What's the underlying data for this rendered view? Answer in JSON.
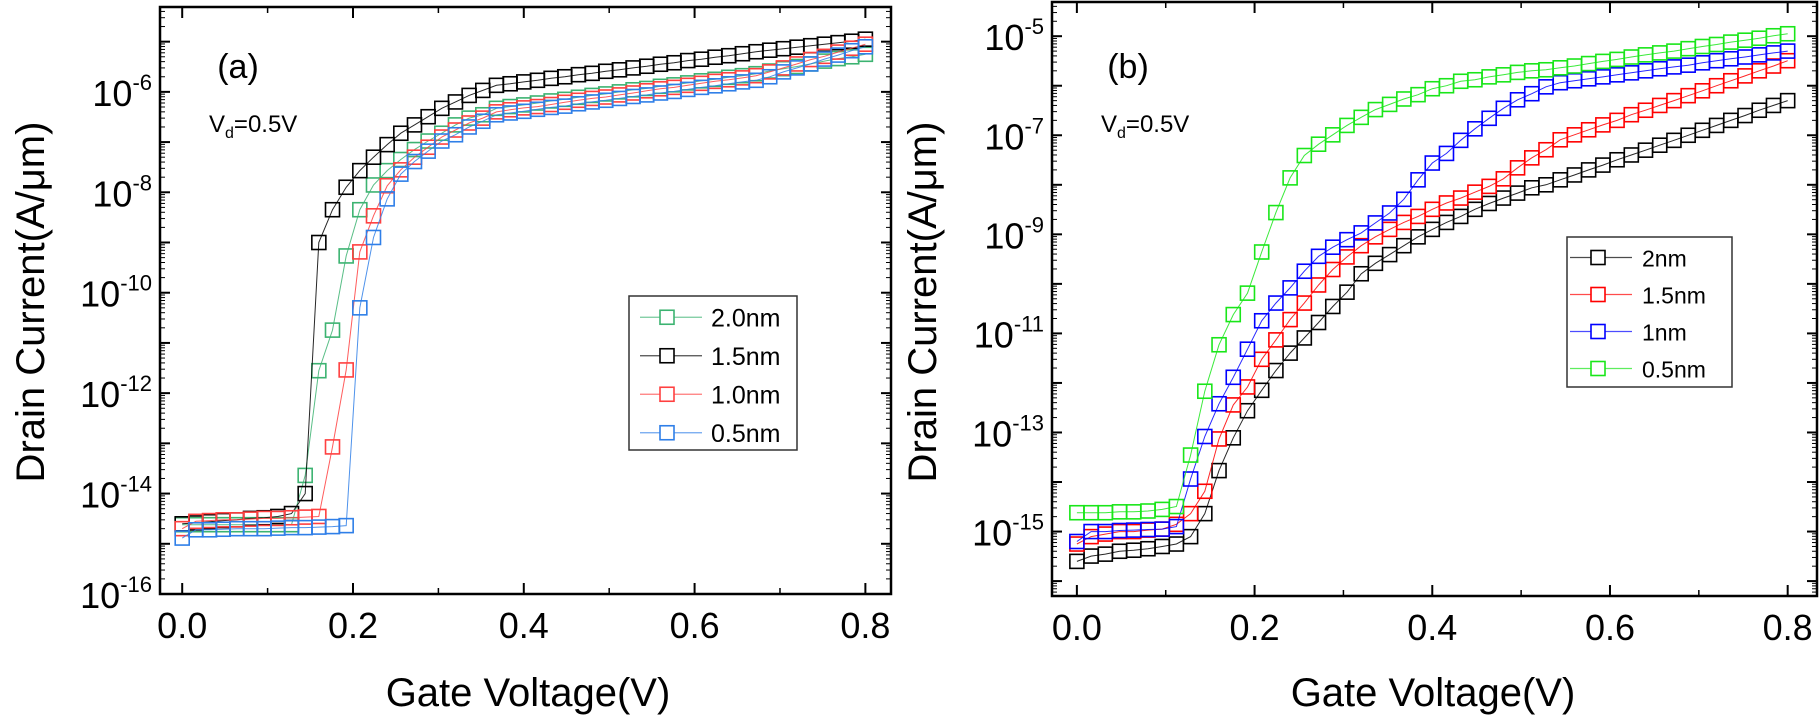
{
  "chart_data": [
    {
      "type": "scatter",
      "panel_label": "(a)",
      "annotation": {
        "main": "V",
        "sub": "d",
        "rest": "=0.5V"
      },
      "xlabel": "Gate Voltage(V)",
      "ylabel": "Drain Current(A/μm)",
      "xlim": [
        -0.026,
        0.83
      ],
      "ylim": [
        1e-16,
        4.9e-05
      ],
      "yscale": "log",
      "xticks": [
        "0.0",
        "0.2",
        "0.4",
        "0.6",
        "0.8"
      ],
      "yticks": [
        {
          "base": "10",
          "exp": "-16"
        },
        {
          "base": "10",
          "exp": "-14"
        },
        {
          "base": "10",
          "exp": "-12"
        },
        {
          "base": "10",
          "exp": "-10"
        },
        {
          "base": "10",
          "exp": "-8"
        },
        {
          "base": "10",
          "exp": "-6"
        }
      ],
      "grid": false,
      "legend_position": "center-right",
      "marker": "open-square",
      "x": [
        0,
        0.016,
        0.032,
        0.048,
        0.064,
        0.08,
        0.096,
        0.112,
        0.128,
        0.144,
        0.16,
        0.176,
        0.192,
        0.208,
        0.224,
        0.24,
        0.256,
        0.272,
        0.288,
        0.304,
        0.32,
        0.336,
        0.352,
        0.368,
        0.384,
        0.4,
        0.416,
        0.432,
        0.448,
        0.464,
        0.48,
        0.496,
        0.512,
        0.528,
        0.544,
        0.56,
        0.576,
        0.592,
        0.608,
        0.624,
        0.64,
        0.656,
        0.672,
        0.688,
        0.704,
        0.72,
        0.736,
        0.752,
        0.768,
        0.784,
        0.8
      ],
      "series": [
        {
          "name": "2.0nm",
          "color": "#3cb371",
          "values": [
            2.4e-15,
            2.4e-15,
            2.4e-15,
            2.4e-15,
            2.4e-15,
            2.4e-15,
            2.4e-15,
            2.4e-15,
            2.4e-15,
            2.3e-14,
            2.8e-12,
            1.8e-11,
            5.4e-10,
            4.5e-09,
            1.4e-08,
            2.7e-08,
            4.5e-08,
            7.1e-08,
            1.05e-07,
            1.5e-07,
            2.2e-07,
            3e-07,
            3.5e-07,
            4.7e-07,
            5.1e-07,
            5.5e-07,
            6e-07,
            6.6e-07,
            7.1e-07,
            7.8e-07,
            8.5e-07,
            9.1e-07,
            1e-06,
            1.1e-06,
            1.17e-06,
            1.29e-06,
            1.38e-06,
            1.51e-06,
            1.66e-06,
            1.78e-06,
            1.95e-06,
            2.1e-06,
            2.3e-06,
            2.6e-06,
            2.9e-06,
            3.2e-06,
            3.6e-06,
            4.1e-06,
            4.6e-06,
            5e-06,
            5.6e-06
          ]
        },
        {
          "name": "1.5nm",
          "color": "#000000",
          "values": [
            2.5e-15,
            2.6e-15,
            2.75e-15,
            2.9e-15,
            3e-15,
            3.2e-15,
            3.3e-15,
            3.5e-15,
            4e-15,
            1e-14,
            1e-09,
            4.5e-09,
            1.26e-08,
            2.7e-08,
            5e-08,
            8.9e-08,
            1.5e-07,
            2.2e-07,
            3.2e-07,
            4.7e-07,
            6.3e-07,
            8.5e-07,
            1.07e-06,
            1.35e-06,
            1.45e-06,
            1.58e-06,
            1.7e-06,
            1.86e-06,
            2e-06,
            2.2e-06,
            2.34e-06,
            2.57e-06,
            2.75e-06,
            3e-06,
            3.24e-06,
            3.55e-06,
            3.8e-06,
            4.2e-06,
            4.47e-06,
            4.9e-06,
            5.25e-06,
            5.75e-06,
            6.3e-06,
            6.76e-06,
            7.24e-06,
            7.76e-06,
            8.3e-06,
            8.9e-06,
            9.55e-06,
            1.02e-05,
            1.12e-05
          ]
        },
        {
          "name": "1.0nm",
          "color": "#ff4040",
          "values": [
            2e-15,
            2.8e-15,
            2.9e-15,
            3e-15,
            3e-15,
            3.1e-15,
            3.2e-15,
            3.2e-15,
            3.3e-15,
            3.4e-15,
            3.5e-15,
            8.5e-14,
            2.9e-12,
            6.5e-10,
            3.4e-09,
            1.35e-08,
            2.8e-08,
            5e-08,
            7.9e-08,
            1.26e-07,
            1.74e-07,
            2.4e-07,
            3e-07,
            4e-07,
            4.4e-07,
            4.8e-07,
            5.1e-07,
            5.6e-07,
            6.2e-07,
            6.8e-07,
            7.4e-07,
            7.9e-07,
            8.7e-07,
            9.5e-07,
            1.05e-06,
            1.15e-06,
            1.23e-06,
            1.35e-06,
            1.48e-06,
            1.62e-06,
            1.74e-06,
            1.9e-06,
            2.1e-06,
            2.5e-06,
            3e-06,
            3.6e-06,
            4.4e-06,
            5.1e-06,
            6.2e-06,
            7.4e-06,
            8.9e-06
          ]
        },
        {
          "name": "0.5nm",
          "color": "#2f7fe8",
          "values": [
            1.3e-15,
            1.9e-15,
            1.9e-15,
            1.95e-15,
            2e-15,
            2e-15,
            2e-15,
            2.05e-15,
            2.1e-15,
            2.1e-15,
            2.15e-15,
            2.2e-15,
            2.3e-15,
            5e-11,
            1.26e-09,
            7.4e-09,
            2.3e-08,
            4.1e-08,
            6.6e-08,
            1.05e-07,
            1.4e-07,
            2e-07,
            2.6e-07,
            3.5e-07,
            3.8e-07,
            4.1e-07,
            4.5e-07,
            4.9e-07,
            5.2e-07,
            5.8e-07,
            6.3e-07,
            6.8e-07,
            7.4e-07,
            8.1e-07,
            8.7e-07,
            9.5e-07,
            1.02e-06,
            1.12e-06,
            1.23e-06,
            1.32e-06,
            1.45e-06,
            1.58e-06,
            1.7e-06,
            2e-06,
            2.5e-06,
            3e-06,
            3.6e-06,
            4.5e-06,
            5.4e-06,
            6.6e-06,
            7.9e-06
          ]
        }
      ]
    },
    {
      "type": "scatter",
      "panel_label": "(b)",
      "annotation": {
        "main": "V",
        "sub": "d",
        "rest": "=0.5V"
      },
      "xlabel": "Gate Voltage(V)",
      "ylabel": "Drain Current(A/μm)",
      "xlim": [
        -0.028,
        0.833
      ],
      "ylim": [
        5e-17,
        4.9e-05
      ],
      "yscale": "log",
      "xticks": [
        "0.0",
        "0.2",
        "0.4",
        "0.6",
        "0.8"
      ],
      "yticks": [
        {
          "base": "10",
          "exp": "-15"
        },
        {
          "base": "10",
          "exp": "-13"
        },
        {
          "base": "10",
          "exp": "-11"
        },
        {
          "base": "10",
          "exp": "-9"
        },
        {
          "base": "10",
          "exp": "-7"
        },
        {
          "base": "10",
          "exp": "-5"
        }
      ],
      "grid": false,
      "legend_position": "center-right",
      "marker": "open-square",
      "x": [
        0,
        0.016,
        0.032,
        0.048,
        0.064,
        0.08,
        0.096,
        0.112,
        0.128,
        0.144,
        0.16,
        0.176,
        0.192,
        0.208,
        0.224,
        0.24,
        0.256,
        0.272,
        0.288,
        0.304,
        0.32,
        0.336,
        0.352,
        0.368,
        0.384,
        0.4,
        0.416,
        0.432,
        0.448,
        0.464,
        0.48,
        0.496,
        0.512,
        0.528,
        0.544,
        0.56,
        0.576,
        0.592,
        0.608,
        0.624,
        0.64,
        0.656,
        0.672,
        0.688,
        0.704,
        0.72,
        0.736,
        0.752,
        0.768,
        0.784,
        0.8
      ],
      "series": [
        {
          "name": "2nm",
          "color": "#000000",
          "values": [
            2.5e-16,
            3.2e-16,
            3.5e-16,
            4e-16,
            4.2e-16,
            4.5e-16,
            5e-16,
            5.6e-16,
            7.9e-16,
            2.3e-15,
            1.7e-14,
            7.8e-14,
            2.75e-13,
            7.1e-13,
            1.78e-12,
            4e-12,
            8.1e-12,
            1.66e-11,
            3.5e-11,
            6.8e-11,
            1.6e-10,
            2.6e-10,
            3.9e-10,
            5.9e-10,
            8.9e-10,
            1.26e-09,
            1.74e-09,
            2.3e-09,
            3.2e-09,
            4.2e-09,
            5.4e-09,
            6.8e-09,
            8.7e-09,
            1e-08,
            1.26e-08,
            1.58e-08,
            2e-08,
            2.5e-08,
            3.2e-08,
            4e-08,
            5e-08,
            6.3e-08,
            7.9e-08,
            1e-07,
            1.26e-07,
            1.58e-07,
            2e-07,
            2.5e-07,
            3.2e-07,
            4e-07,
            5e-07
          ]
        },
        {
          "name": "1.5nm",
          "color": "#ff0000",
          "values": [
            5.6e-16,
            7.9e-16,
            8.9e-16,
            1e-15,
            1e-15,
            1.07e-15,
            1.12e-15,
            1.4e-15,
            2.3e-15,
            6.5e-15,
            7.4e-14,
            3.6e-13,
            8.3e-13,
            3e-12,
            7.4e-12,
            1.9e-11,
            4.1e-11,
            9.5e-11,
            1.95e-10,
            3.5e-10,
            5.9e-10,
            8.9e-10,
            1.26e-09,
            1.74e-09,
            2.3e-09,
            3.2e-09,
            4.3e-09,
            5.4e-09,
            7.1e-09,
            9.3e-09,
            1.32e-08,
            2.2e-08,
            3.5e-08,
            5.1e-08,
            8.1e-08,
            1.02e-07,
            1.29e-07,
            1.62e-07,
            2e-07,
            2.6e-07,
            3.2e-07,
            4e-07,
            5e-07,
            6.3e-07,
            7.9e-07,
            1e-06,
            1.26e-06,
            1.58e-06,
            2e-06,
            2.5e-06,
            3.2e-06
          ]
        },
        {
          "name": "1nm",
          "color": "#0000ff",
          "values": [
            6.3e-16,
            1e-15,
            1e-15,
            1.05e-15,
            1.07e-15,
            1.1e-15,
            1.12e-15,
            1.26e-15,
            1.15e-14,
            8.3e-14,
            3.8e-13,
            1.3e-12,
            4.8e-12,
            1.8e-11,
            4.1e-11,
            8.3e-11,
            1.8e-10,
            3.6e-10,
            5.5e-10,
            7.8e-10,
            1.07e-09,
            1.7e-09,
            2.7e-09,
            5.1e-09,
            1.26e-08,
            2.75e-08,
            4.3e-08,
            7.9e-08,
            1.35e-07,
            2.2e-07,
            3.5e-07,
            5.2e-07,
            6.9e-07,
            9.5e-07,
            1.15e-06,
            1.26e-06,
            1.38e-06,
            1.51e-06,
            1.66e-06,
            1.82e-06,
            2e-06,
            2.2e-06,
            2.4e-06,
            2.6e-06,
            2.9e-06,
            3.2e-06,
            3.5e-06,
            3.8e-06,
            4.2e-06,
            4.6e-06,
            5e-06
          ]
        },
        {
          "name": "0.5nm",
          "color": "#19e619",
          "values": [
            2.4e-15,
            2.4e-15,
            2.4e-15,
            2.5e-15,
            2.5e-15,
            2.6e-15,
            2.8e-15,
            3.2e-15,
            3.5e-14,
            6.8e-13,
            5.9e-12,
            2.4e-11,
            6.5e-11,
            4.4e-10,
            2.75e-09,
            1.38e-08,
            3.9e-08,
            6.6e-08,
            1.02e-07,
            1.58e-07,
            2.3e-07,
            3.3e-07,
            4.2e-07,
            5.4e-07,
            6.6e-07,
            8.7e-07,
            1e-06,
            1.23e-06,
            1.32e-06,
            1.51e-06,
            1.66e-06,
            1.86e-06,
            2e-06,
            2.1e-06,
            2.3e-06,
            2.5e-06,
            2.8e-06,
            3.1e-06,
            3.4e-06,
            3.8e-06,
            4.2e-06,
            4.6e-06,
            5e-06,
            5.6e-06,
            6.2e-06,
            6.8e-06,
            7.6e-06,
            8.3e-06,
            9.1e-06,
            1.02e-05,
            1.12e-05
          ]
        }
      ]
    }
  ]
}
